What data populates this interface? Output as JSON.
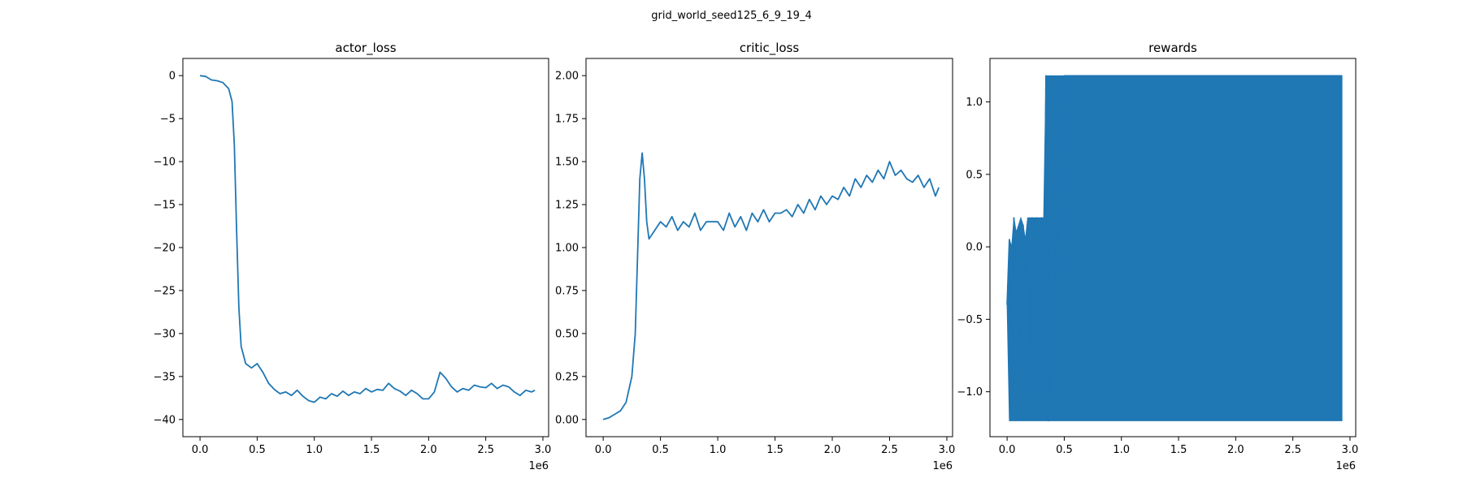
{
  "figure_title": "grid_world_seed125_6_9_19_4",
  "colors": {
    "line": "#1f77b4",
    "axes": "#000000",
    "background": "#ffffff"
  },
  "chart_data": [
    {
      "type": "line",
      "title": "actor_loss",
      "xlabel": "",
      "ylabel": "",
      "x_offset_label": "1e6",
      "xlim": [
        -0.15,
        3.05
      ],
      "ylim": [
        -42,
        2
      ],
      "xticks": [
        0.0,
        0.5,
        1.0,
        1.5,
        2.0,
        2.5,
        3.0
      ],
      "xtick_labels": [
        "0.0",
        "0.5",
        "1.0",
        "1.5",
        "2.0",
        "2.5",
        "3.0"
      ],
      "yticks": [
        0,
        -5,
        -10,
        -15,
        -20,
        -25,
        -30,
        -35,
        -40
      ],
      "ytick_labels": [
        "0",
        "−5",
        "−10",
        "−15",
        "−20",
        "−25",
        "−30",
        "−35",
        "−40"
      ],
      "grid": false,
      "legend": "none",
      "series": [
        {
          "x": [
            0.0,
            0.05,
            0.1,
            0.15,
            0.2,
            0.25,
            0.28,
            0.3,
            0.32,
            0.34,
            0.36,
            0.38,
            0.4,
            0.45,
            0.5,
            0.55,
            0.6,
            0.65,
            0.7,
            0.75,
            0.8,
            0.85,
            0.9,
            0.95,
            1.0,
            1.05,
            1.1,
            1.15,
            1.2,
            1.25,
            1.3,
            1.35,
            1.4,
            1.45,
            1.5,
            1.55,
            1.6,
            1.65,
            1.7,
            1.75,
            1.8,
            1.85,
            1.9,
            1.95,
            2.0,
            2.05,
            2.1,
            2.15,
            2.2,
            2.25,
            2.3,
            2.35,
            2.4,
            2.45,
            2.5,
            2.55,
            2.6,
            2.65,
            2.7,
            2.75,
            2.8,
            2.85,
            2.9,
            2.93
          ],
          "values": [
            0.0,
            -0.1,
            -0.5,
            -0.6,
            -0.8,
            -1.5,
            -3.0,
            -8.0,
            -18.0,
            -27.0,
            -31.5,
            -32.5,
            -33.5,
            -34.0,
            -33.5,
            -34.5,
            -35.8,
            -36.5,
            -37.0,
            -36.8,
            -37.2,
            -36.6,
            -37.3,
            -37.8,
            -38.0,
            -37.4,
            -37.6,
            -37.0,
            -37.3,
            -36.7,
            -37.2,
            -36.8,
            -37.0,
            -36.4,
            -36.8,
            -36.5,
            -36.6,
            -35.8,
            -36.4,
            -36.7,
            -37.2,
            -36.6,
            -37.0,
            -37.6,
            -37.6,
            -36.8,
            -34.5,
            -35.2,
            -36.2,
            -36.8,
            -36.4,
            -36.6,
            -36.0,
            -36.2,
            -36.3,
            -35.8,
            -36.4,
            -36.0,
            -36.2,
            -36.8,
            -37.2,
            -36.6,
            -36.8,
            -36.6
          ]
        }
      ]
    },
    {
      "type": "line",
      "title": "critic_loss",
      "xlabel": "",
      "ylabel": "",
      "x_offset_label": "1e6",
      "xlim": [
        -0.15,
        3.05
      ],
      "ylim": [
        -0.1,
        2.1
      ],
      "xticks": [
        0.0,
        0.5,
        1.0,
        1.5,
        2.0,
        2.5,
        3.0
      ],
      "xtick_labels": [
        "0.0",
        "0.5",
        "1.0",
        "1.5",
        "2.0",
        "2.5",
        "3.0"
      ],
      "yticks": [
        0.0,
        0.25,
        0.5,
        0.75,
        1.0,
        1.25,
        1.5,
        1.75,
        2.0
      ],
      "ytick_labels": [
        "0.00",
        "0.25",
        "0.50",
        "0.75",
        "1.00",
        "1.25",
        "1.50",
        "1.75",
        "2.00"
      ],
      "grid": false,
      "legend": "none",
      "series": [
        {
          "x": [
            0.0,
            0.05,
            0.1,
            0.15,
            0.2,
            0.25,
            0.28,
            0.3,
            0.32,
            0.34,
            0.36,
            0.38,
            0.4,
            0.45,
            0.5,
            0.55,
            0.6,
            0.65,
            0.7,
            0.75,
            0.8,
            0.85,
            0.9,
            0.95,
            1.0,
            1.05,
            1.1,
            1.15,
            1.2,
            1.25,
            1.3,
            1.35,
            1.4,
            1.45,
            1.5,
            1.55,
            1.6,
            1.65,
            1.7,
            1.75,
            1.8,
            1.85,
            1.9,
            1.95,
            2.0,
            2.05,
            2.1,
            2.15,
            2.2,
            2.25,
            2.3,
            2.35,
            2.4,
            2.45,
            2.5,
            2.55,
            2.6,
            2.65,
            2.7,
            2.75,
            2.8,
            2.85,
            2.9,
            2.93
          ],
          "values": [
            0.0,
            0.01,
            0.03,
            0.05,
            0.1,
            0.25,
            0.5,
            0.95,
            1.4,
            1.55,
            1.4,
            1.15,
            1.05,
            1.1,
            1.15,
            1.12,
            1.18,
            1.1,
            1.15,
            1.12,
            1.2,
            1.1,
            1.15,
            1.15,
            1.15,
            1.1,
            1.2,
            1.12,
            1.18,
            1.1,
            1.2,
            1.15,
            1.22,
            1.15,
            1.2,
            1.2,
            1.22,
            1.18,
            1.25,
            1.2,
            1.28,
            1.22,
            1.3,
            1.25,
            1.3,
            1.28,
            1.35,
            1.3,
            1.4,
            1.35,
            1.42,
            1.38,
            1.45,
            1.4,
            1.5,
            1.42,
            1.45,
            1.4,
            1.38,
            1.42,
            1.35,
            1.4,
            1.3,
            1.35
          ]
        }
      ]
    },
    {
      "type": "line",
      "title": "rewards",
      "xlabel": "",
      "ylabel": "",
      "x_offset_label": "1e6",
      "xlim": [
        -0.15,
        3.05
      ],
      "ylim": [
        -1.31,
        1.3
      ],
      "xticks": [
        0.0,
        0.5,
        1.0,
        1.5,
        2.0,
        2.5,
        3.0
      ],
      "xtick_labels": [
        "0.0",
        "0.5",
        "1.0",
        "1.5",
        "2.0",
        "2.5",
        "3.0"
      ],
      "yticks": [
        1.0,
        0.5,
        0.0,
        -0.5,
        -1.0
      ],
      "ytick_labels": [
        "1.0",
        "0.5",
        "0.0",
        "−0.5",
        "−1.0"
      ],
      "grid": false,
      "legend": "none",
      "series": [
        {
          "x": [
            0.0,
            0.02,
            0.04,
            0.06,
            0.08,
            0.1,
            0.12,
            0.14,
            0.16,
            0.18,
            0.2,
            0.22,
            0.24,
            0.26,
            0.28,
            0.3,
            0.32,
            0.34,
            0.36,
            0.5,
            1.0,
            1.5,
            2.0,
            2.5,
            2.93
          ],
          "values": [
            -0.4,
            0.05,
            -1.1,
            0.2,
            -0.3,
            0.1,
            -1.0,
            0.15,
            -0.2,
            0.0,
            -1.1,
            0.2,
            -0.5,
            0.2,
            -0.9,
            0.2,
            -1.0,
            1.18,
            -1.2,
            1.18,
            1.18,
            1.18,
            1.18,
            1.18,
            1.18
          ],
          "band_upper": [
            -0.4,
            0.05,
            0.0,
            0.2,
            0.1,
            0.15,
            0.2,
            0.15,
            0.05,
            0.2,
            0.2,
            0.2,
            0.2,
            0.2,
            0.2,
            0.2,
            0.2,
            1.18,
            1.18,
            1.18,
            1.18,
            1.18,
            1.18,
            1.18,
            1.18
          ],
          "band_lower": [
            -0.4,
            -1.2,
            -1.2,
            -1.2,
            -1.2,
            -1.2,
            -1.2,
            -1.2,
            -1.2,
            -1.2,
            -1.2,
            -1.2,
            -1.2,
            -1.2,
            -1.2,
            -1.2,
            -1.2,
            -1.2,
            -1.2,
            -1.2,
            -1.2,
            -1.2,
            -1.2,
            -1.2,
            -1.2
          ]
        }
      ]
    }
  ]
}
